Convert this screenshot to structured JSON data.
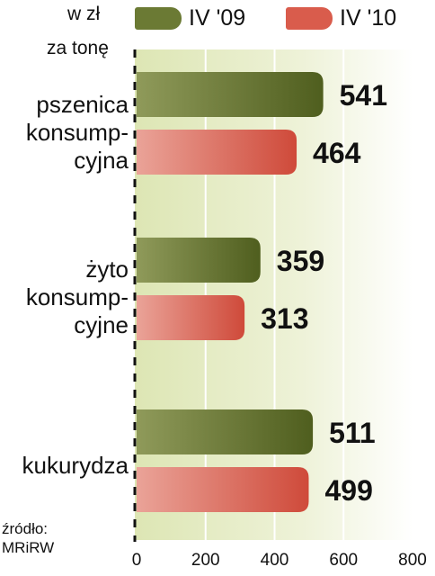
{
  "unit_line1": "w zł",
  "unit_line2": "za tonę",
  "source_line1": "źródło:",
  "source_line2": "MRiRW",
  "colors": {
    "series1": "#6b7a34",
    "series2": "#d95c4c",
    "plot_bg": "#e9efcf",
    "value_text": "#111111"
  },
  "chart_data": {
    "type": "bar",
    "orientation": "horizontal",
    "categories": [
      [
        "pszenica",
        "konsump-",
        "cyjna"
      ],
      [
        "żyto",
        "konsump-",
        "cyjne"
      ],
      [
        "kukurydza"
      ]
    ],
    "series": [
      {
        "name": "IV '09",
        "values": [
          541,
          359,
          511
        ]
      },
      {
        "name": "IV '10",
        "values": [
          464,
          313,
          499
        ]
      }
    ],
    "xlim": [
      0,
      800
    ],
    "xticks": [
      "0",
      "200",
      "400",
      "600",
      "800"
    ],
    "grid": true,
    "legend_position": "top"
  }
}
